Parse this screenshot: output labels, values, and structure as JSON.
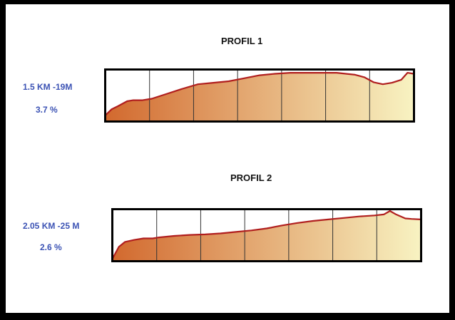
{
  "chart_data": [
    {
      "type": "area",
      "title": "PROFIL 1",
      "distance_label": "1.5 KM -19M",
      "gradient_label": "3.7 %",
      "colors": {
        "line": "#b01e1e",
        "fill_start": "#d2692e",
        "fill_end": "#f8f3c2",
        "frame": "#000000"
      },
      "grid": true,
      "vertical_gridlines": 6,
      "x": [
        0,
        0.02,
        0.04,
        0.07,
        0.09,
        0.12,
        0.15,
        0.2,
        0.25,
        0.3,
        0.35,
        0.4,
        0.45,
        0.5,
        0.55,
        0.6,
        0.65,
        0.7,
        0.75,
        0.78,
        0.81,
        0.84,
        0.87,
        0.9,
        0.93,
        0.96,
        0.98,
        1.0
      ],
      "y": [
        0.12,
        0.24,
        0.3,
        0.4,
        0.42,
        0.42,
        0.45,
        0.55,
        0.65,
        0.74,
        0.77,
        0.8,
        0.86,
        0.92,
        0.95,
        0.97,
        0.97,
        0.97,
        0.97,
        0.95,
        0.93,
        0.88,
        0.78,
        0.74,
        0.77,
        0.83,
        0.97,
        0.95
      ]
    },
    {
      "type": "area",
      "title": "PROFIL 2",
      "distance_label": "2.05 KM -25 M",
      "gradient_label": "2.6 %",
      "colors": {
        "line": "#b01e1e",
        "fill_start": "#d2692e",
        "fill_end": "#f8f3c2",
        "frame": "#000000"
      },
      "grid": true,
      "vertical_gridlines": 6,
      "x": [
        0,
        0.02,
        0.04,
        0.07,
        0.1,
        0.13,
        0.15,
        0.2,
        0.25,
        0.3,
        0.35,
        0.4,
        0.45,
        0.5,
        0.55,
        0.6,
        0.65,
        0.7,
        0.75,
        0.8,
        0.85,
        0.88,
        0.9,
        0.92,
        0.95,
        0.97,
        1.0
      ],
      "y": [
        0.05,
        0.28,
        0.38,
        0.42,
        0.45,
        0.45,
        0.47,
        0.5,
        0.52,
        0.53,
        0.55,
        0.58,
        0.61,
        0.65,
        0.71,
        0.76,
        0.8,
        0.83,
        0.86,
        0.89,
        0.91,
        0.93,
        1.0,
        0.93,
        0.85,
        0.84,
        0.83
      ]
    }
  ]
}
